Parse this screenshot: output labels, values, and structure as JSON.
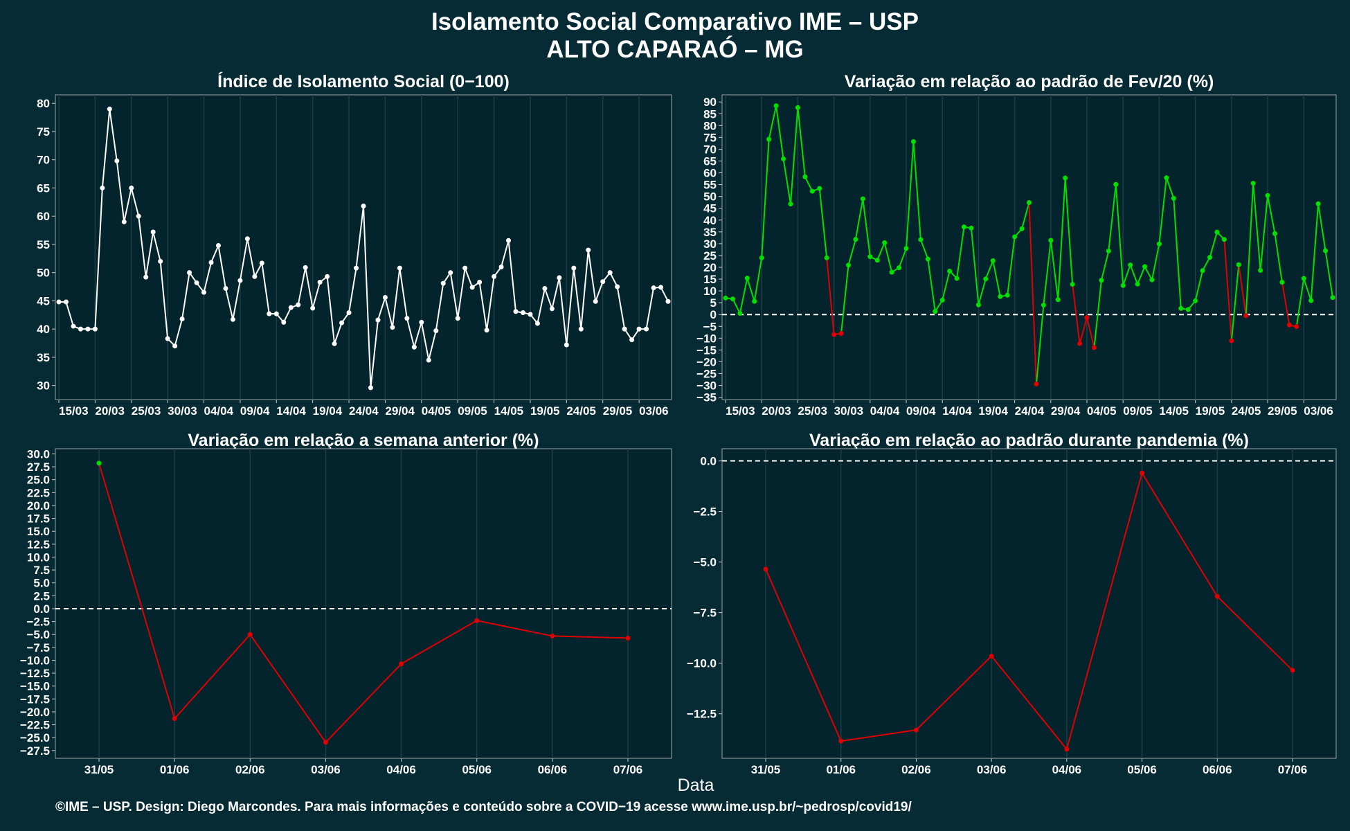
{
  "header": {
    "title_line1": "Isolamento Social Comparativo IME – USP",
    "title_line2": "ALTO CAPARAÓ – MG"
  },
  "x_axis_title": "Data",
  "footer": "©IME – USP. Design: Diego Marcondes. Para mais informações e conteúdo sobre a COVID−19 acesse www.ime.usp.br/~pedrosp/covid19/",
  "colors": {
    "background": "#062b35",
    "panel": "#03242d",
    "white": "#ffffff",
    "positive": "#00e000",
    "negative": "#e00000"
  },
  "chart_data": [
    {
      "type": "line",
      "title": "Índice de Isolamento Social (0−100)",
      "x_start": "15/03",
      "x_tick_labels": [
        "15/03",
        "20/03",
        "25/03",
        "30/03",
        "04/04",
        "09/04",
        "14/04",
        "19/04",
        "24/04",
        "29/04",
        "04/05",
        "09/05",
        "14/05",
        "19/05",
        "24/05",
        "29/05",
        "03/06"
      ],
      "x_tick_indices": [
        0,
        5,
        10,
        15,
        20,
        25,
        30,
        35,
        40,
        45,
        50,
        55,
        60,
        65,
        70,
        75,
        80
      ],
      "ylim": [
        27.5,
        81.5
      ],
      "y_ticks": [
        30,
        35,
        40,
        45,
        50,
        55,
        60,
        65,
        70,
        75,
        80
      ],
      "values": [
        44.8,
        44.8,
        40.5,
        40.0,
        40.0,
        40.0,
        65.0,
        79.0,
        69.8,
        59.0,
        65.0,
        60.0,
        49.2,
        57.2,
        52.0,
        38.3,
        37.0,
        41.8,
        50.0,
        48.2,
        46.5,
        51.8,
        54.8,
        47.2,
        41.7,
        48.6,
        56.0,
        49.3,
        51.7,
        42.7,
        42.7,
        41.2,
        43.8,
        44.3,
        50.9,
        43.7,
        48.3,
        49.3,
        37.4,
        41.1,
        42.9,
        50.8,
        61.8,
        29.6,
        41.6,
        45.6,
        40.3,
        50.8,
        41.9,
        36.8,
        41.2,
        34.5,
        39.7,
        48.1,
        50.0,
        41.9,
        50.8,
        47.4,
        48.3,
        39.8,
        49.3,
        51.0,
        55.7,
        43.1,
        42.9,
        42.6,
        41.0,
        47.2,
        43.6,
        49.1,
        37.2,
        50.8,
        40.0,
        54.0,
        44.9,
        48.4,
        50.0,
        47.5,
        40.0,
        38.1,
        40.0,
        40.0,
        47.3,
        47.4,
        44.9
      ],
      "color": "#ffffff"
    },
    {
      "type": "line",
      "title": "Variação em relação ao padrão de Fev/20 (%)",
      "x_start": "15/03",
      "x_tick_labels": [
        "15/03",
        "20/03",
        "25/03",
        "30/03",
        "04/04",
        "09/04",
        "14/04",
        "19/04",
        "24/04",
        "29/04",
        "04/05",
        "09/05",
        "14/05",
        "19/05",
        "24/05",
        "29/05",
        "03/06"
      ],
      "x_tick_indices": [
        0,
        5,
        10,
        15,
        20,
        25,
        30,
        35,
        40,
        45,
        50,
        55,
        60,
        65,
        70,
        75,
        80
      ],
      "ylim": [
        -36,
        93
      ],
      "y_ticks": [
        -35,
        -30,
        -25,
        -20,
        -15,
        -10,
        -5,
        0,
        5,
        10,
        15,
        20,
        25,
        30,
        35,
        40,
        45,
        50,
        55,
        60,
        65,
        70,
        75,
        80,
        85,
        90
      ],
      "reference_line": 0,
      "values": [
        7.0,
        6.6,
        0.5,
        15.4,
        5.6,
        24.0,
        74.2,
        88.4,
        65.9,
        46.8,
        87.6,
        58.3,
        52.2,
        53.4,
        24.0,
        -8.5,
        -8.0,
        20.9,
        31.8,
        49.0,
        24.5,
        23.0,
        30.4,
        17.9,
        19.8,
        28.0,
        73.2,
        31.7,
        23.5,
        1.3,
        6.1,
        18.4,
        15.3,
        37.1,
        36.6,
        4.1,
        15.1,
        22.8,
        7.6,
        8.2,
        32.9,
        36.3,
        47.4,
        -29.4,
        4.0,
        31.4,
        6.3,
        57.8,
        12.8,
        -12.3,
        -1.3,
        -14.0,
        14.5,
        26.9,
        55.1,
        12.3,
        21.0,
        12.9,
        20.3,
        14.7,
        29.9,
        57.9,
        49.2,
        2.6,
        2.1,
        5.8,
        18.6,
        24.2,
        34.9,
        31.8,
        -11.1,
        21.1,
        -0.5,
        55.6,
        18.7,
        50.4,
        34.3,
        13.7,
        -4.4,
        -5.1,
        15.3,
        5.9,
        46.9,
        27.0,
        7.2
      ],
      "positive_color": "#00e000",
      "negative_color": "#e00000"
    },
    {
      "type": "line",
      "title": "Variação em relação a semana anterior (%)",
      "categories": [
        "31/05",
        "01/06",
        "02/06",
        "03/06",
        "04/06",
        "05/06",
        "06/06",
        "07/06"
      ],
      "values": [
        28.2,
        -21.3,
        -5.0,
        -25.9,
        -10.7,
        -2.3,
        -5.3,
        -5.7
      ],
      "ylim": [
        -29,
        31
      ],
      "y_ticks": [
        -27.5,
        -25.0,
        -22.5,
        -20.0,
        -17.5,
        -15.0,
        -12.5,
        -10.0,
        -7.5,
        -5.0,
        -2.5,
        0.0,
        2.5,
        5.0,
        7.5,
        10.0,
        12.5,
        15.0,
        17.5,
        20.0,
        22.5,
        25.0,
        27.5,
        30.0
      ],
      "reference_line": 0,
      "positive_color": "#00e000",
      "negative_color": "#e00000"
    },
    {
      "type": "line",
      "title": "Variação em relação ao padrão durante pandemia (%)",
      "categories": [
        "31/05",
        "01/06",
        "02/06",
        "03/06",
        "04/06",
        "05/06",
        "06/06",
        "07/06"
      ],
      "values": [
        -5.35,
        -13.85,
        -13.3,
        -9.65,
        -14.25,
        -0.6,
        -6.7,
        -10.35
      ],
      "ylim": [
        -14.7,
        0.6
      ],
      "y_ticks": [
        -12.5,
        -10.0,
        -7.5,
        -5.0,
        -2.5,
        0.0
      ],
      "reference_line": 0,
      "positive_color": "#00e000",
      "negative_color": "#e00000"
    }
  ]
}
